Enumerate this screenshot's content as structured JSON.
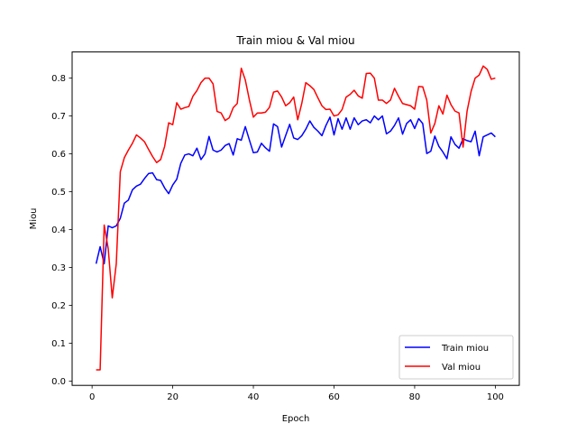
{
  "chart_data": {
    "type": "line",
    "title": "Train miou & Val miou",
    "xlabel": "Epoch",
    "ylabel": "Miou",
    "xlim": [
      -4.95,
      105.95
    ],
    "ylim": [
      -0.011,
      0.869
    ],
    "xticks": [
      0,
      20,
      40,
      60,
      80,
      100
    ],
    "yticks": [
      0.0,
      0.1,
      0.2,
      0.3,
      0.4,
      0.5,
      0.6,
      0.7,
      0.8
    ],
    "ytick_labels": [
      "0.0",
      "0.1",
      "0.2",
      "0.3",
      "0.4",
      "0.5",
      "0.6",
      "0.7",
      "0.8"
    ],
    "grid": false,
    "legend_position": "lower right",
    "x": [
      1,
      2,
      3,
      4,
      5,
      6,
      7,
      8,
      9,
      10,
      11,
      12,
      13,
      14,
      15,
      16,
      17,
      18,
      19,
      20,
      21,
      22,
      23,
      24,
      25,
      26,
      27,
      28,
      29,
      30,
      31,
      32,
      33,
      34,
      35,
      36,
      37,
      38,
      39,
      40,
      41,
      42,
      43,
      44,
      45,
      46,
      47,
      48,
      49,
      50,
      51,
      52,
      53,
      54,
      55,
      56,
      57,
      58,
      59,
      60,
      61,
      62,
      63,
      64,
      65,
      66,
      67,
      68,
      69,
      70,
      71,
      72,
      73,
      74,
      75,
      76,
      77,
      78,
      79,
      80,
      81,
      82,
      83,
      84,
      85,
      86,
      87,
      88,
      89,
      90,
      91,
      92,
      93,
      94,
      95,
      96,
      97,
      98,
      99,
      100
    ],
    "series": [
      {
        "name": "Train miou",
        "color": "#0000ff",
        "values": [
          0.31,
          0.355,
          0.31,
          0.41,
          0.405,
          0.41,
          0.43,
          0.47,
          0.478,
          0.505,
          0.515,
          0.52,
          0.535,
          0.548,
          0.55,
          0.532,
          0.53,
          0.51,
          0.495,
          0.518,
          0.533,
          0.575,
          0.597,
          0.6,
          0.595,
          0.615,
          0.585,
          0.6,
          0.646,
          0.61,
          0.605,
          0.61,
          0.622,
          0.627,
          0.597,
          0.64,
          0.636,
          0.672,
          0.637,
          0.603,
          0.605,
          0.628,
          0.616,
          0.607,
          0.679,
          0.672,
          0.618,
          0.648,
          0.678,
          0.642,
          0.638,
          0.648,
          0.665,
          0.687,
          0.67,
          0.66,
          0.648,
          0.675,
          0.697,
          0.65,
          0.693,
          0.665,
          0.695,
          0.665,
          0.695,
          0.677,
          0.687,
          0.69,
          0.682,
          0.7,
          0.69,
          0.7,
          0.653,
          0.66,
          0.675,
          0.695,
          0.652,
          0.68,
          0.69,
          0.667,
          0.693,
          0.68,
          0.601,
          0.607,
          0.647,
          0.62,
          0.605,
          0.587,
          0.645,
          0.625,
          0.615,
          0.64,
          0.635,
          0.632,
          0.66,
          0.595,
          0.645,
          0.65,
          0.655,
          0.645
        ]
      },
      {
        "name": "Val miou",
        "color": "#ff0000",
        "values": [
          0.03,
          0.03,
          0.412,
          0.35,
          0.22,
          0.31,
          0.553,
          0.59,
          0.61,
          0.628,
          0.65,
          0.642,
          0.632,
          0.612,
          0.593,
          0.577,
          0.585,
          0.62,
          0.682,
          0.677,
          0.735,
          0.718,
          0.722,
          0.725,
          0.752,
          0.767,
          0.788,
          0.8,
          0.8,
          0.785,
          0.712,
          0.708,
          0.688,
          0.695,
          0.722,
          0.733,
          0.826,
          0.795,
          0.743,
          0.697,
          0.708,
          0.708,
          0.71,
          0.723,
          0.763,
          0.766,
          0.75,
          0.727,
          0.735,
          0.75,
          0.69,
          0.733,
          0.788,
          0.78,
          0.77,
          0.748,
          0.727,
          0.717,
          0.718,
          0.7,
          0.703,
          0.717,
          0.75,
          0.757,
          0.768,
          0.753,
          0.747,
          0.812,
          0.813,
          0.8,
          0.742,
          0.742,
          0.733,
          0.742,
          0.773,
          0.752,
          0.733,
          0.73,
          0.727,
          0.718,
          0.778,
          0.777,
          0.742,
          0.655,
          0.68,
          0.727,
          0.705,
          0.755,
          0.73,
          0.713,
          0.708,
          0.618,
          0.713,
          0.765,
          0.8,
          0.808,
          0.832,
          0.823,
          0.797,
          0.8
        ]
      }
    ]
  }
}
